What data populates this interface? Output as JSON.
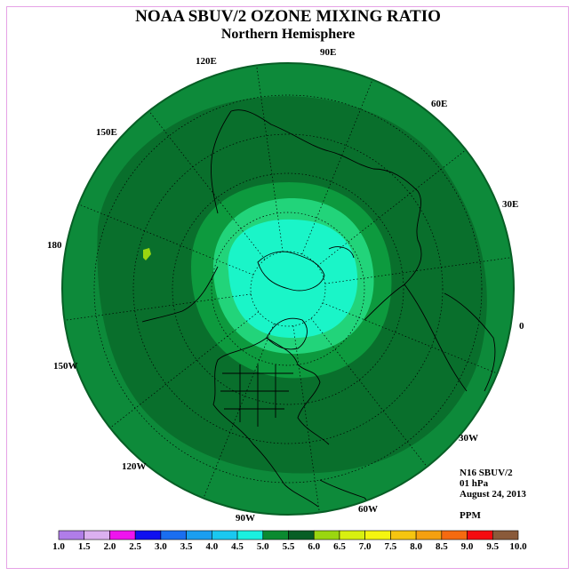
{
  "title": "NOAA SBUV/2 OZONE MIXING RATIO",
  "subtitle": "Northern Hemisphere",
  "info": {
    "instrument": "N16 SBUV/2",
    "level": "01 hPa",
    "date": "August 24, 2013",
    "units": "PPM"
  },
  "longitude_labels": [
    "90E",
    "60E",
    "30E",
    "0",
    "30W",
    "60W",
    "90W",
    "120W",
    "150W",
    "180",
    "150E",
    "120E"
  ],
  "colorbar": {
    "ticks": [
      "1.0",
      "1.5",
      "2.0",
      "2.5",
      "3.0",
      "3.5",
      "4.0",
      "4.5",
      "5.0",
      "5.5",
      "6.0",
      "6.5",
      "7.0",
      "7.5",
      "8.0",
      "8.5",
      "9.0",
      "9.5",
      "10.0"
    ],
    "colors": [
      "#b07de8",
      "#dbb0f0",
      "#ee14ee",
      "#1010f0",
      "#1a6ef0",
      "#1a9ef0",
      "#1ac8f0",
      "#1af0e0",
      "#0b8a30",
      "#075e25",
      "#9ad610",
      "#d8f010",
      "#f5f510",
      "#f5c510",
      "#f5a010",
      "#f56a10",
      "#f50a10",
      "#8a5a3a"
    ]
  },
  "map_colors": {
    "outer": "#0d8a3a",
    "band_dark": "#096f2c",
    "band_mid": "#0d9a3e",
    "inner_ring": "#22d47a",
    "core": "#1af5c8"
  }
}
